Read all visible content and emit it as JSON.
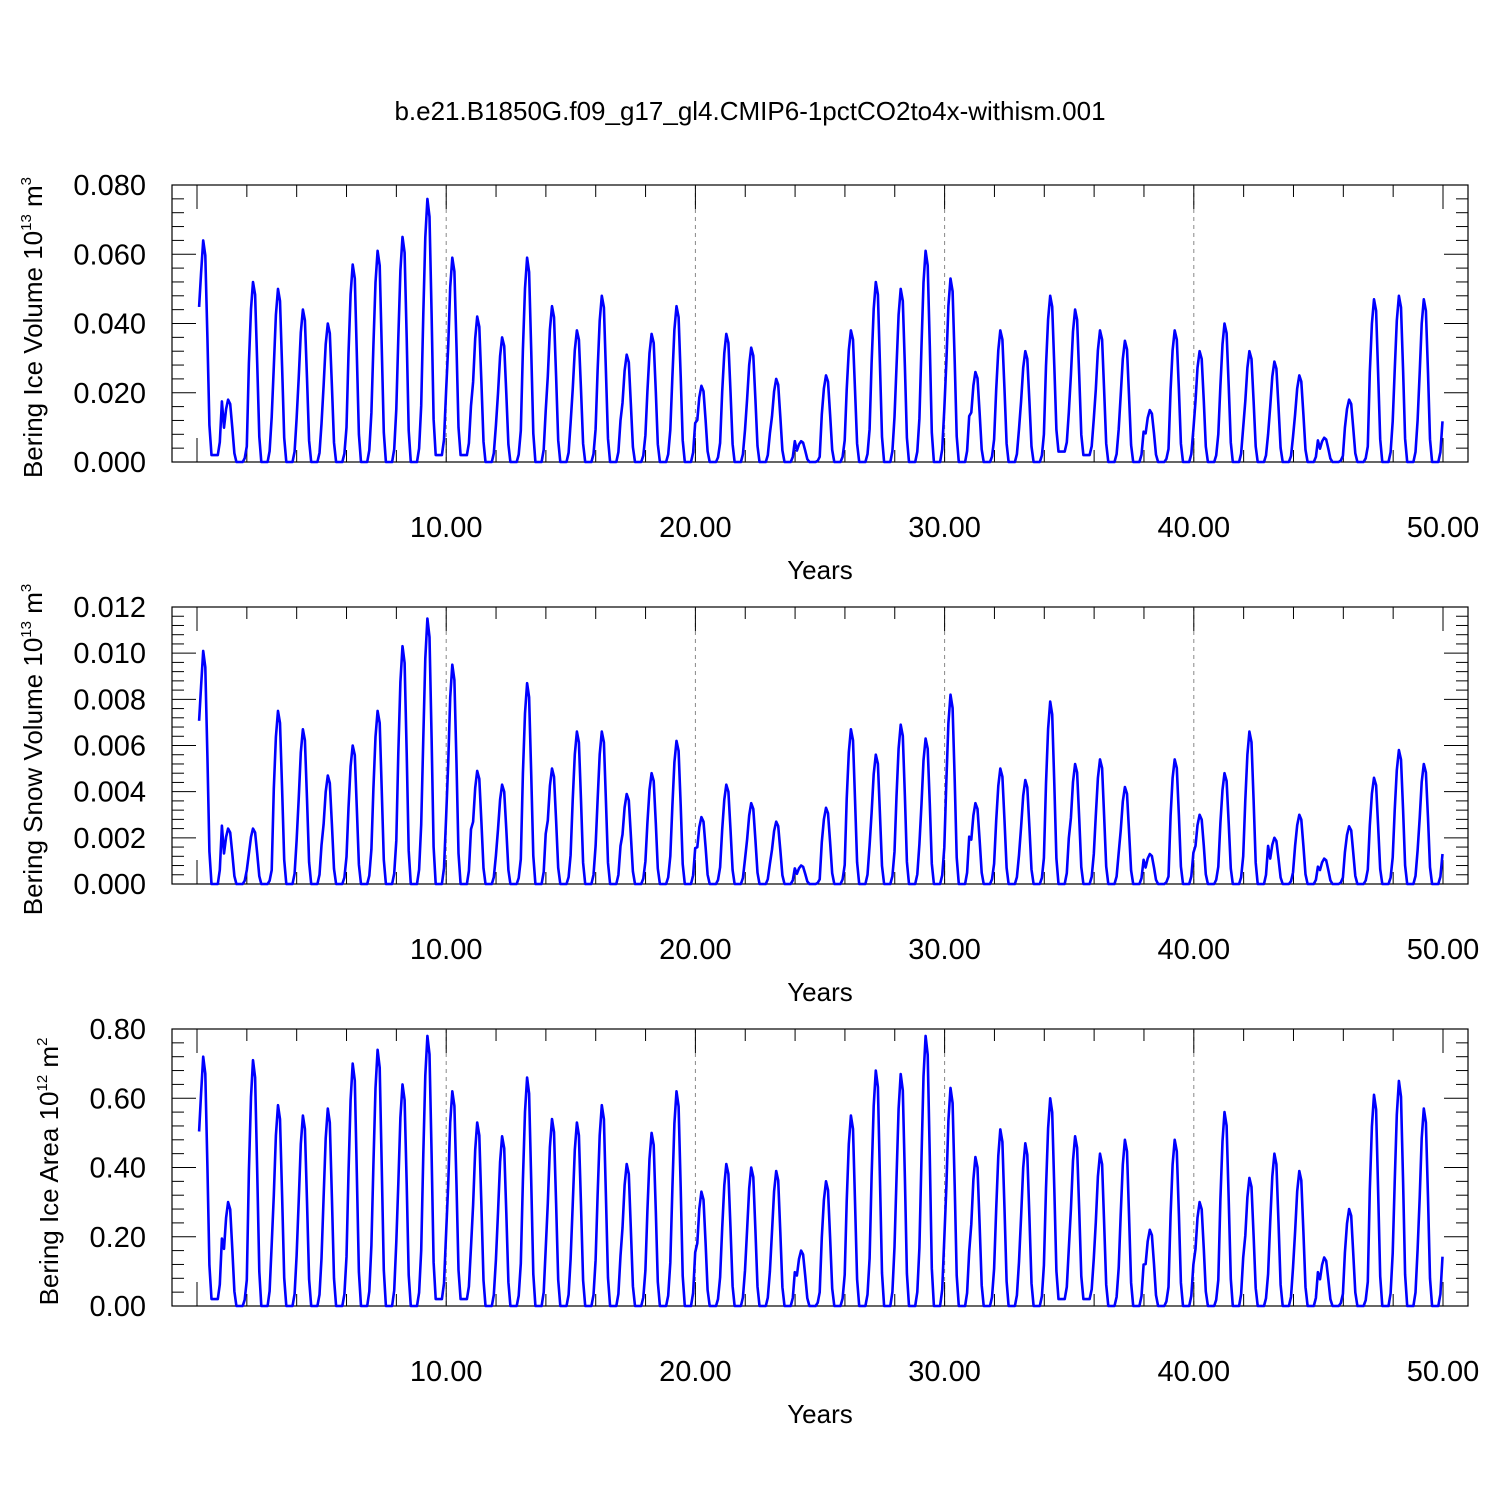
{
  "title": "b.e21.B1850G.f09_g17_gl4.CMIP6-1pctCO2to4x-withism.001",
  "series_color": "#0000ff",
  "chart_data": [
    {
      "type": "line",
      "ylabel_main": "Bering Ice Volume 10",
      "ylabel_exp": "13",
      "ylabel_unit": " m",
      "ylabel_unit_exp": "3",
      "xlabel": "Years",
      "xlim": [
        0,
        50
      ],
      "ylim": [
        0,
        0.08
      ],
      "yticks": [
        0.0,
        0.02,
        0.04,
        0.06,
        0.08
      ],
      "ytick_labels": [
        "0.000",
        "0.020",
        "0.040",
        "0.060",
        "0.080"
      ],
      "xticks": [
        10,
        20,
        30,
        40,
        50
      ],
      "xtick_labels": [
        "10.00",
        "20.00",
        "30.00",
        "40.00",
        "50.00"
      ],
      "grid_x": [
        10,
        20,
        30,
        40
      ],
      "x_start": 0.083,
      "x_step": 0.0833,
      "peaks": [
        0.064,
        0.018,
        0.052,
        0.05,
        0.044,
        0.04,
        0.057,
        0.061,
        0.065,
        0.076,
        0.059,
        0.042,
        0.036,
        0.059,
        0.045,
        0.038,
        0.048,
        0.031,
        0.037,
        0.045,
        0.022,
        0.037,
        0.033,
        0.024,
        0.006,
        0.025,
        0.038,
        0.052,
        0.05,
        0.061,
        0.053,
        0.026,
        0.038,
        0.032,
        0.048,
        0.044,
        0.038,
        0.035,
        0.015,
        0.038,
        0.032,
        0.04,
        0.032,
        0.029,
        0.025,
        0.007,
        0.018,
        0.047,
        0.048,
        0.047
      ],
      "minima": [
        0.002,
        0.0,
        0.0,
        0.0,
        0.0,
        0.0,
        0.0,
        0.0,
        0.0,
        0.002,
        0.002,
        0.0,
        0.0,
        0.0,
        0.0,
        0.0,
        0.0,
        0.0,
        0.0,
        0.0,
        0.0,
        0.0,
        0.0,
        0.0,
        0.0,
        0.0,
        0.0,
        0.0,
        0.0,
        0.0,
        0.0,
        0.0,
        0.0,
        0.0,
        0.003,
        0.002,
        0.0,
        0.0,
        0.0,
        0.0,
        0.0,
        0.0,
        0.0,
        0.0,
        0.0,
        0.0,
        0.0,
        0.0,
        0.0,
        0.0
      ]
    },
    {
      "type": "line",
      "ylabel_main": "Bering Snow Volume 10",
      "ylabel_exp": "13",
      "ylabel_unit": " m",
      "ylabel_unit_exp": "3",
      "xlabel": "Years",
      "xlim": [
        0,
        50
      ],
      "ylim": [
        0,
        0.012
      ],
      "yticks": [
        0.0,
        0.002,
        0.004,
        0.006,
        0.008,
        0.01,
        0.012
      ],
      "ytick_labels": [
        "0.000",
        "0.002",
        "0.004",
        "0.006",
        "0.008",
        "0.010",
        "0.012"
      ],
      "xticks": [
        10,
        20,
        30,
        40,
        50
      ],
      "xtick_labels": [
        "10.00",
        "20.00",
        "30.00",
        "40.00",
        "50.00"
      ],
      "grid_x": [
        10,
        20,
        30,
        40
      ],
      "x_start": 0.083,
      "x_step": 0.0833,
      "peaks": [
        0.0101,
        0.0024,
        0.0024,
        0.0075,
        0.0067,
        0.0047,
        0.006,
        0.0075,
        0.0103,
        0.0115,
        0.0095,
        0.0049,
        0.0043,
        0.0087,
        0.005,
        0.0066,
        0.0066,
        0.0039,
        0.0048,
        0.0062,
        0.0029,
        0.0043,
        0.0035,
        0.0027,
        0.0008,
        0.0033,
        0.0067,
        0.0056,
        0.0069,
        0.0063,
        0.0082,
        0.0035,
        0.005,
        0.0045,
        0.0079,
        0.0052,
        0.0054,
        0.0042,
        0.0013,
        0.0054,
        0.003,
        0.0048,
        0.0066,
        0.002,
        0.003,
        0.0011,
        0.0025,
        0.0046,
        0.0058,
        0.0052
      ],
      "minima": [
        0.0,
        0.0,
        0.0,
        0.0,
        0.0,
        0.0,
        0.0,
        0.0,
        0.0,
        0.0,
        0.0,
        0.0,
        0.0,
        0.0,
        0.0,
        0.0,
        0.0,
        0.0,
        0.0,
        0.0,
        0.0,
        0.0,
        0.0,
        0.0,
        0.0,
        0.0,
        0.0,
        0.0,
        0.0,
        0.0,
        0.0,
        0.0,
        0.0,
        0.0,
        0.0,
        0.0,
        0.0,
        0.0,
        0.0,
        0.0,
        0.0,
        0.0,
        0.0,
        0.0,
        0.0,
        0.0,
        0.0,
        0.0,
        0.0,
        0.0
      ]
    },
    {
      "type": "line",
      "ylabel_main": "Bering Ice Area 10",
      "ylabel_exp": "12",
      "ylabel_unit": " m",
      "ylabel_unit_exp": "2",
      "xlabel": "Years",
      "xlim": [
        0,
        50
      ],
      "ylim": [
        0,
        0.8
      ],
      "yticks": [
        0.0,
        0.2,
        0.4,
        0.6,
        0.8
      ],
      "ytick_labels": [
        "0.00",
        "0.20",
        "0.40",
        "0.60",
        "0.80"
      ],
      "xticks": [
        10,
        20,
        30,
        40,
        50
      ],
      "xtick_labels": [
        "10.00",
        "20.00",
        "30.00",
        "40.00",
        "50.00"
      ],
      "grid_x": [
        10,
        20,
        30,
        40
      ],
      "x_start": 0.083,
      "x_step": 0.0833,
      "peaks": [
        0.72,
        0.3,
        0.71,
        0.58,
        0.55,
        0.57,
        0.7,
        0.74,
        0.64,
        0.78,
        0.62,
        0.53,
        0.49,
        0.66,
        0.54,
        0.53,
        0.58,
        0.41,
        0.5,
        0.62,
        0.33,
        0.41,
        0.4,
        0.39,
        0.16,
        0.36,
        0.55,
        0.68,
        0.67,
        0.78,
        0.63,
        0.43,
        0.51,
        0.47,
        0.6,
        0.49,
        0.44,
        0.48,
        0.22,
        0.48,
        0.3,
        0.56,
        0.37,
        0.44,
        0.39,
        0.14,
        0.28,
        0.61,
        0.65,
        0.57
      ],
      "minima": [
        0.02,
        0.0,
        0.0,
        0.0,
        0.0,
        0.0,
        0.0,
        0.0,
        0.0,
        0.02,
        0.02,
        0.0,
        0.0,
        0.0,
        0.0,
        0.0,
        0.0,
        0.0,
        0.0,
        0.0,
        0.0,
        0.0,
        0.0,
        0.0,
        0.0,
        0.0,
        0.0,
        0.0,
        0.0,
        0.0,
        0.0,
        0.0,
        0.0,
        0.0,
        0.02,
        0.02,
        0.0,
        0.0,
        0.0,
        0.0,
        0.0,
        0.0,
        0.0,
        0.0,
        0.0,
        0.0,
        0.0,
        0.0,
        0.0,
        0.0
      ]
    }
  ]
}
